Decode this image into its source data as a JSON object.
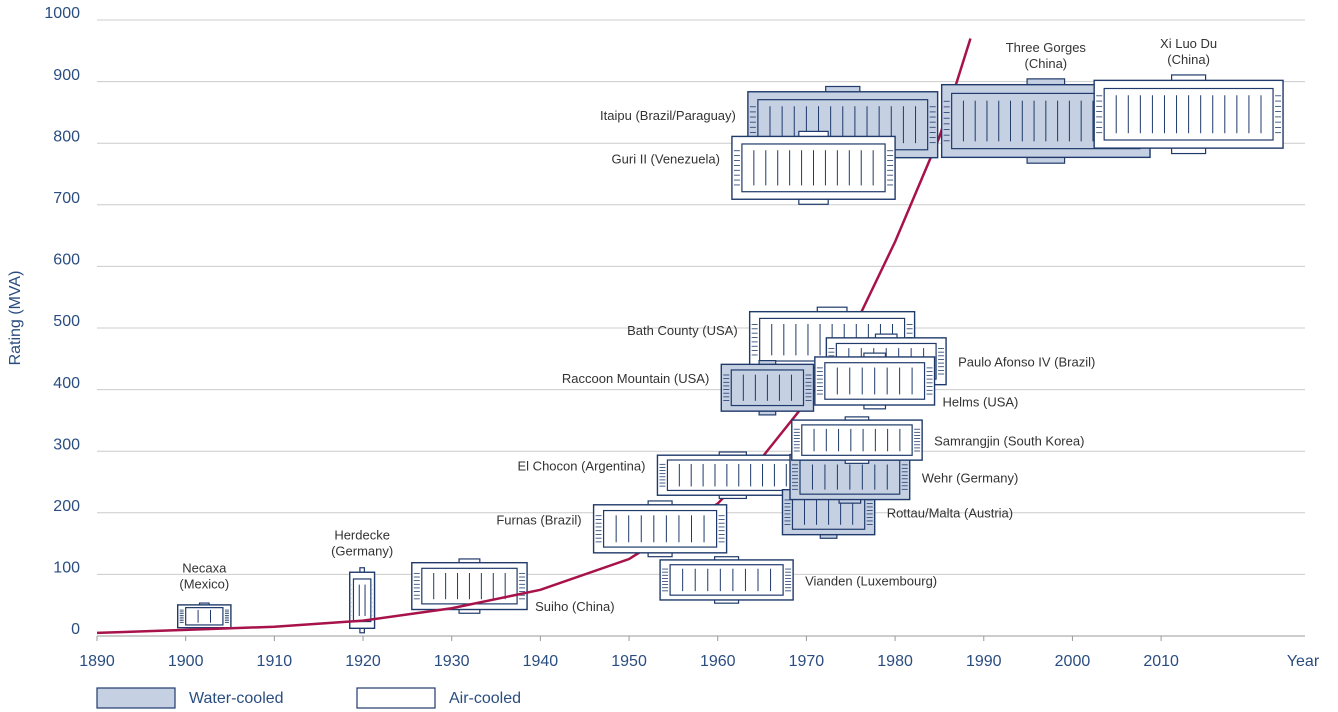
{
  "chart_data": {
    "type": "glyph-scatter",
    "y_label": "Rating (MVA)",
    "x_label": "Year",
    "xlim": [
      1890,
      2026
    ],
    "xticks": [
      1890,
      1900,
      1910,
      1920,
      1930,
      1940,
      1950,
      1960,
      1970,
      1980,
      1990,
      2000,
      2010
    ],
    "ylim": [
      0,
      1000
    ],
    "yticks": [
      0,
      100,
      200,
      300,
      400,
      500,
      600,
      700,
      800,
      900,
      1000
    ],
    "grid": true,
    "curve": {
      "color": "#a8124a",
      "x": [
        1890,
        1900,
        1910,
        1920,
        1930,
        1940,
        1950,
        1960,
        1965,
        1970,
        1975,
        1980,
        1985,
        1988.5
      ],
      "y": [
        5,
        10,
        15,
        25,
        45,
        75,
        125,
        215,
        290,
        380,
        490,
        640,
        810,
        970
      ]
    },
    "cooling": [
      {
        "name": "Water-cooled",
        "color": "#c5d0e3"
      },
      {
        "name": "Air-cooled",
        "color": "#ffffff"
      }
    ],
    "plants": [
      {
        "label": [
          "Necaxa",
          "(Mexico)"
        ],
        "x": 1902.1,
        "y": 32,
        "w": 6,
        "h": 37,
        "cooling": 1,
        "side": "above"
      },
      {
        "label": [
          "Herdecke",
          "(Germany)"
        ],
        "x": 1919.9,
        "y": 58,
        "w": 2.8,
        "h": 91,
        "cooling": 1,
        "side": "above"
      },
      {
        "label": [
          "Suiho (China)"
        ],
        "x": 1932,
        "y": 81,
        "w": 13,
        "h": 76,
        "cooling": 1,
        "side": "below-right"
      },
      {
        "label": [
          "Furnas (Brazil)"
        ],
        "x": 1953.5,
        "y": 174,
        "w": 15,
        "h": 78,
        "cooling": 1,
        "side": "left"
      },
      {
        "label": [
          "Vianden (Luxembourg)"
        ],
        "x": 1961,
        "y": 91,
        "w": 15,
        "h": 65,
        "cooling": 1,
        "side": "right"
      },
      {
        "label": [
          "El Chocon (Argentina)"
        ],
        "x": 1961.7,
        "y": 261,
        "w": 17,
        "h": 65,
        "cooling": 1,
        "side": "left"
      },
      {
        "label": [
          "Rottau/Malta (Austria)"
        ],
        "x": 1972.5,
        "y": 201,
        "w": 10.4,
        "h": 73,
        "cooling": 0,
        "side": "right"
      },
      {
        "label": [
          "Wehr (Germany)"
        ],
        "x": 1974.9,
        "y": 258,
        "w": 13.5,
        "h": 73,
        "cooling": 0,
        "side": "right"
      },
      {
        "label": [
          "Samrangjin (South Korea)"
        ],
        "x": 1975.7,
        "y": 318,
        "w": 14.7,
        "h": 65,
        "cooling": 1,
        "side": "right"
      },
      {
        "label": [
          "Bath County (USA)"
        ],
        "x": 1972.9,
        "y": 481,
        "w": 18.6,
        "h": 91,
        "cooling": 1,
        "side": "left"
      },
      {
        "label": [
          "Paulo Afonso IV (Brazil)"
        ],
        "x": 1979,
        "y": 446,
        "w": 13.5,
        "h": 76,
        "cooling": 1,
        "side": "right"
      },
      {
        "label": [
          "Raccoon Mountain (USA)"
        ],
        "x": 1965.6,
        "y": 403,
        "w": 10.4,
        "h": 76,
        "cooling": 0,
        "side": "left"
      },
      {
        "label": [
          "Helms (USA)"
        ],
        "x": 1977.7,
        "y": 414,
        "w": 13.5,
        "h": 78,
        "cooling": 1,
        "side": "below-right"
      },
      {
        "label": [
          "Itaipu (Brazil/Paraguay)"
        ],
        "x": 1974.1,
        "y": 830,
        "w": 21.4,
        "h": 107,
        "cooling": 0,
        "side": "left"
      },
      {
        "label": [
          "Guri II (Venezuela)"
        ],
        "x": 1970.8,
        "y": 760,
        "w": 18.4,
        "h": 102,
        "cooling": 1,
        "side": "left"
      },
      {
        "label": [
          "Three Gorges",
          "(China)"
        ],
        "x": 1997,
        "y": 836,
        "w": 23.5,
        "h": 118,
        "cooling": 0,
        "side": "above"
      },
      {
        "label": [
          "Xi Luo Du",
          "(China)"
        ],
        "x": 2013.1,
        "y": 847,
        "w": 21.3,
        "h": 110,
        "cooling": 1,
        "side": "above"
      }
    ]
  }
}
